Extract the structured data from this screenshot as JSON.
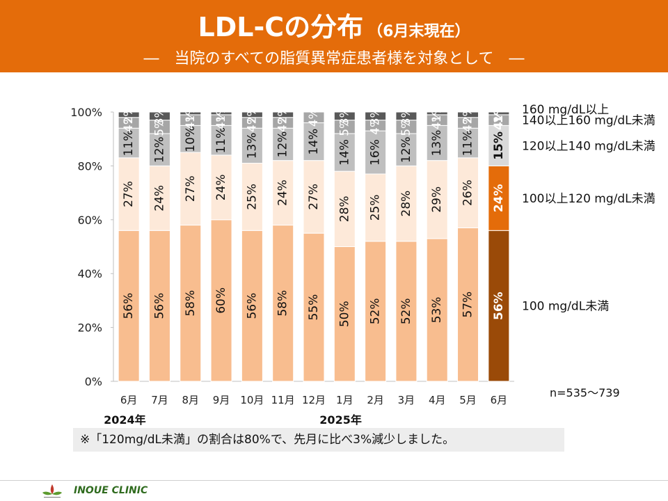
{
  "header": {
    "title": "LDL-Cの分布",
    "title_paren": "（6月末現在）",
    "subtitle": "―　当院のすべての脂質異常症患者様を対象として　―"
  },
  "note": "※「120mg/dL未満」の割合は80%で、先月に比べ3%減少しました。",
  "footer": {
    "clinic_name": "INOUE CLINIC"
  },
  "chart_data": {
    "type": "bar",
    "stacked": true,
    "percent": true,
    "categories": [
      "6月",
      "7月",
      "8月",
      "9月",
      "10月",
      "11月",
      "12月",
      "1月",
      "2月",
      "3月",
      "4月",
      "5月",
      "6月"
    ],
    "year_labels": [
      {
        "text": "2024年",
        "category_index": 0
      },
      {
        "text": "2025年",
        "category_index": 7
      }
    ],
    "yticks": [
      "0%",
      "20%",
      "40%",
      "60%",
      "80%",
      "100%"
    ],
    "ylim": [
      0,
      100
    ],
    "sample_size": "n=535～739",
    "series": [
      {
        "name": "100 mg/dL未満",
        "values": [
          56,
          56,
          58,
          60,
          56,
          58,
          55,
          50,
          52,
          52,
          53,
          57,
          56
        ],
        "color": "#F8BD8F",
        "highlight_color": "#9A4A08",
        "label_color": "#111111",
        "highlight_label_color": "#ffffff"
      },
      {
        "name": "100以上120 mg/dL未満",
        "values": [
          27,
          24,
          27,
          24,
          25,
          24,
          27,
          28,
          25,
          28,
          29,
          26,
          24
        ],
        "color": "#FDE9D9",
        "highlight_color": "#E46C0A",
        "label_color": "#111111",
        "highlight_label_color": "#ffffff"
      },
      {
        "name": "120以上140 mg/dL未満",
        "values": [
          11,
          12,
          10,
          11,
          13,
          12,
          14,
          14,
          16,
          12,
          13,
          11,
          15
        ],
        "color": "#BFBFBF",
        "highlight_color": "#D9D9D9",
        "label_color": "#111111",
        "highlight_label_color": "#111111"
      },
      {
        "name": "140以上160 mg/dL未満",
        "values": [
          4,
          5,
          4,
          4,
          4,
          4,
          4,
          5,
          4,
          5,
          4,
          4,
          4
        ],
        "color": "#A6A6A6",
        "highlight_color": "#A6A6A6",
        "label_color": "#ffffff",
        "highlight_label_color": "#ffffff"
      },
      {
        "name": "160 mg/dL以上",
        "values": [
          2,
          3,
          1,
          1,
          2,
          2,
          0,
          3,
          3,
          3,
          1,
          2,
          1
        ],
        "color": "#595959",
        "highlight_color": "#595959",
        "label_color": "#ffffff",
        "highlight_label_color": "#ffffff"
      }
    ],
    "highlight_category_index": 12,
    "legend_placement": "right",
    "grid": false
  }
}
